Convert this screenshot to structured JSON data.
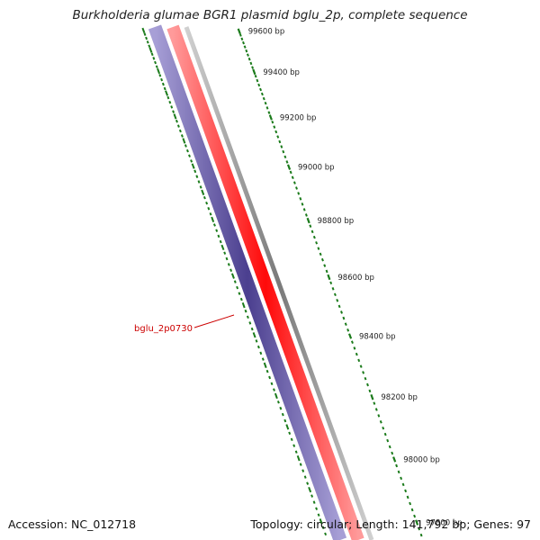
{
  "map": {
    "title": "Burkholderia glumae BGR1 plasmid bglu_2p, complete sequence",
    "accession_label": "Accession:",
    "accession": "NC_012718",
    "topology_label": "Topology:",
    "topology": "circular",
    "length_label": "Length:",
    "length": "141,792 bp",
    "genes_label": "Genes:",
    "genes": "97"
  },
  "features": {
    "gene_label": "bglu_2p0730"
  },
  "colors": {
    "reverse_strand_cds": "#4b3f8f",
    "forward_strand_cds": "#ff1010",
    "backbone": "#8c8c8c",
    "ruler_ticks": "#1a7a1a",
    "gene_label": "#cc0000"
  },
  "scale": {
    "unit": "bp",
    "ticks": [
      {
        "value": 99600,
        "label": "99600 bp"
      },
      {
        "value": 99400,
        "label": "99400 bp"
      },
      {
        "value": 99200,
        "label": "99200 bp"
      },
      {
        "value": 99000,
        "label": "99000 bp"
      },
      {
        "value": 98800,
        "label": "98800 bp"
      },
      {
        "value": 98600,
        "label": "98600 bp"
      },
      {
        "value": 98400,
        "label": "98400 bp"
      },
      {
        "value": 98200,
        "label": "98200 bp"
      },
      {
        "value": 98000,
        "label": "98000 bp"
      },
      {
        "value": 97800,
        "label": "97800 bp"
      }
    ]
  }
}
